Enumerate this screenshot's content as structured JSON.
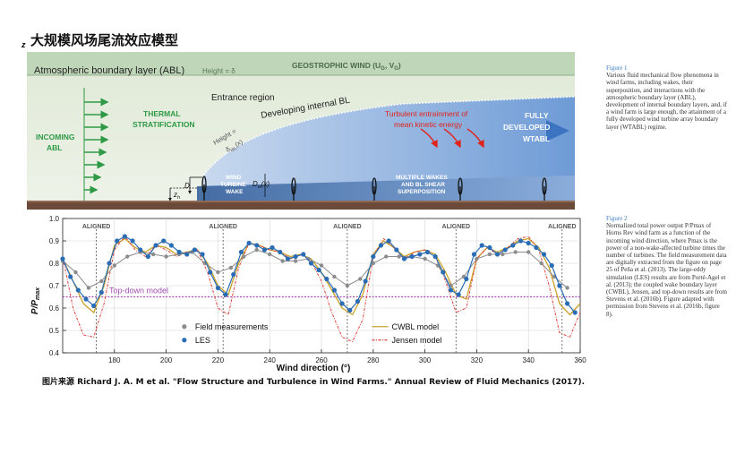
{
  "page": {
    "title": "大规模风场尾流效应模型",
    "source": "图片来源 Richard J. A. M et al. \"Flow Structure and Turbulence in Wind Farms.\" Annual Review of Fluid Mechanics (2017)."
  },
  "figure1": {
    "z_axis": "z",
    "abl_label": "Atmospheric boundary layer (ABL)",
    "height_delta": "Height = δ",
    "geostrophic": "GEOSTROPHIC WIND (U",
    "geostrophic_sub1": "G",
    "geostrophic_mid": ", V",
    "geostrophic_sub2": "G",
    "geostrophic_end": ")",
    "incoming_1": "INCOMING",
    "incoming_2": "ABL",
    "thermal_1": "THERMAL",
    "thermal_2": "STRATIFICATION",
    "entrance": "Entrance region",
    "developing": "Developing internal BL",
    "height_ibl": "Height =",
    "delta_ibl": "δ",
    "delta_ibl_sub": "IBL",
    "delta_ibl_arg": "(x)",
    "turbulent_1": "Turbulent entrainment of",
    "turbulent_2": "mean kinetic energy",
    "fully_1": "FULLY",
    "fully_2": "DEVELOPED",
    "fully_3": "WTABL",
    "wake_1": "WIND",
    "wake_2": "TURBINE",
    "wake_3": "WAKE",
    "dw": "D",
    "dw_sub": "w",
    "dw_arg": "(x)",
    "d": "D",
    "zh": "z",
    "zh_sub": "h",
    "multi_1": "MULTIPLE WAKES",
    "multi_2": "AND BL SHEAR",
    "multi_3": "SUPERPOSITION"
  },
  "figure2": {
    "ylabel": "P/P",
    "ylabel_sub": "max",
    "xlabel": "Wind direction (°)",
    "aligned": "ALIGNED",
    "top_down_label": "Top-down model",
    "legend": {
      "field": "Field measurements",
      "les": "LES",
      "cwbl": "CWBL model",
      "jensen": "Jensen model"
    },
    "colors": {
      "field": "#8c8c8c",
      "les": "#2a6db5",
      "cwbl": "#c9a227",
      "jensen": "#e0403a",
      "topdown": "#a24fb0"
    }
  },
  "chart_data": {
    "type": "line",
    "xlim": [
      160,
      360
    ],
    "ylim": [
      0.4,
      1.0
    ],
    "xticks": [
      180,
      200,
      220,
      240,
      260,
      280,
      300,
      320,
      340,
      360
    ],
    "yticks": [
      0.4,
      0.5,
      0.6,
      0.7,
      0.8,
      0.9,
      1.0
    ],
    "aligned_x": [
      173,
      222,
      270,
      312,
      353
    ],
    "top_down": 0.65,
    "series": [
      {
        "name": "Field measurements",
        "x": [
          160,
          165,
          170,
          175,
          180,
          185,
          190,
          195,
          200,
          205,
          210,
          215,
          220,
          225,
          230,
          235,
          240,
          245,
          250,
          255,
          260,
          265,
          270,
          275,
          280,
          285,
          290,
          295,
          300,
          305,
          310,
          315,
          320,
          325,
          330,
          335,
          340,
          345,
          350,
          355
        ],
        "y": [
          0.81,
          0.76,
          0.69,
          0.72,
          0.79,
          0.83,
          0.85,
          0.84,
          0.83,
          0.84,
          0.85,
          0.8,
          0.76,
          0.78,
          0.83,
          0.86,
          0.84,
          0.81,
          0.81,
          0.82,
          0.79,
          0.74,
          0.7,
          0.73,
          0.8,
          0.83,
          0.83,
          0.83,
          0.82,
          0.79,
          0.7,
          0.74,
          0.82,
          0.84,
          0.84,
          0.85,
          0.85,
          0.8,
          0.74,
          0.69
        ]
      },
      {
        "name": "LES",
        "x": [
          160,
          163,
          166,
          169,
          172,
          175,
          178,
          181,
          184,
          187,
          190,
          193,
          196,
          199,
          202,
          205,
          208,
          211,
          214,
          217,
          220,
          223,
          226,
          229,
          232,
          235,
          238,
          241,
          244,
          247,
          250,
          253,
          256,
          259,
          262,
          265,
          268,
          271,
          274,
          277,
          280,
          283,
          286,
          289,
          292,
          295,
          298,
          301,
          304,
          307,
          310,
          313,
          316,
          319,
          322,
          325,
          328,
          331,
          334,
          337,
          340,
          343,
          346,
          349,
          352,
          355,
          358
        ],
        "y": [
          0.82,
          0.74,
          0.68,
          0.64,
          0.61,
          0.67,
          0.8,
          0.9,
          0.92,
          0.9,
          0.86,
          0.83,
          0.88,
          0.9,
          0.88,
          0.85,
          0.84,
          0.86,
          0.84,
          0.76,
          0.69,
          0.66,
          0.75,
          0.85,
          0.89,
          0.88,
          0.86,
          0.87,
          0.85,
          0.82,
          0.83,
          0.84,
          0.8,
          0.77,
          0.73,
          0.68,
          0.62,
          0.59,
          0.63,
          0.72,
          0.83,
          0.88,
          0.9,
          0.86,
          0.82,
          0.83,
          0.84,
          0.85,
          0.83,
          0.76,
          0.68,
          0.66,
          0.73,
          0.84,
          0.88,
          0.87,
          0.84,
          0.86,
          0.88,
          0.9,
          0.89,
          0.87,
          0.84,
          0.79,
          0.7,
          0.62,
          0.58
        ]
      },
      {
        "name": "CWBL model",
        "x": [
          160,
          164,
          168,
          172,
          176,
          180,
          184,
          188,
          192,
          196,
          200,
          204,
          208,
          212,
          216,
          220,
          224,
          228,
          232,
          236,
          240,
          244,
          248,
          252,
          256,
          260,
          264,
          268,
          272,
          276,
          280,
          284,
          288,
          292,
          296,
          300,
          304,
          308,
          312,
          316,
          320,
          324,
          328,
          332,
          336,
          340,
          344,
          348,
          352,
          356,
          360
        ],
        "y": [
          0.82,
          0.72,
          0.62,
          0.58,
          0.7,
          0.88,
          0.91,
          0.87,
          0.85,
          0.88,
          0.87,
          0.84,
          0.85,
          0.86,
          0.8,
          0.7,
          0.66,
          0.8,
          0.89,
          0.88,
          0.86,
          0.85,
          0.83,
          0.84,
          0.82,
          0.76,
          0.68,
          0.6,
          0.57,
          0.66,
          0.84,
          0.9,
          0.87,
          0.83,
          0.85,
          0.86,
          0.84,
          0.76,
          0.66,
          0.64,
          0.82,
          0.87,
          0.85,
          0.87,
          0.9,
          0.91,
          0.87,
          0.78,
          0.62,
          0.57,
          0.62
        ]
      },
      {
        "name": "Jensen model",
        "x": [
          160,
          164,
          168,
          172,
          176,
          180,
          184,
          188,
          192,
          196,
          200,
          204,
          208,
          212,
          216,
          220,
          224,
          228,
          232,
          236,
          240,
          244,
          248,
          252,
          256,
          260,
          264,
          268,
          272,
          276,
          280,
          284,
          288,
          292,
          296,
          300,
          304,
          308,
          312,
          316,
          320,
          324,
          328,
          332,
          336,
          340,
          344,
          348,
          352,
          356,
          360
        ],
        "y": [
          0.83,
          0.6,
          0.48,
          0.47,
          0.62,
          0.86,
          0.92,
          0.86,
          0.83,
          0.88,
          0.86,
          0.83,
          0.85,
          0.86,
          0.76,
          0.6,
          0.57,
          0.78,
          0.89,
          0.88,
          0.86,
          0.85,
          0.82,
          0.84,
          0.81,
          0.72,
          0.58,
          0.47,
          0.45,
          0.55,
          0.83,
          0.91,
          0.87,
          0.82,
          0.85,
          0.86,
          0.83,
          0.72,
          0.58,
          0.6,
          0.82,
          0.87,
          0.84,
          0.87,
          0.91,
          0.92,
          0.86,
          0.7,
          0.49,
          0.47,
          0.58
        ]
      }
    ]
  },
  "captions": {
    "fig1_title": "Figure 1",
    "fig1_text": "Various fluid mechanical flow phenomena in wind farms, including wakes, their superposition, and interactions with the atmospheric boundary layer (ABL), development of internal boundary layers, and, if a wind farm is large enough, the attainment of a fully developed wind turbine array boundary layer (WTABL) regime.",
    "fig2_title": "Figure 2",
    "fig2_text": "Normalized total power output P/Pmax of Horns Rev wind farm as a function of the incoming wind direction, where Pmax is the power of a non-wake-affected turbine times the number of turbines. The field measurement data are digitally extracted from the figure on page 25 of Peña et al. (2013). The large-eddy simulation (LES) results are from Porté-Agel et al. (2013); the coupled wake boundary layer (CWBL), Jensen, and top-down results are from Stevens et al. (2016b). Figure adapted with permission from Stevens et al. (2016b, figure 8)."
  }
}
